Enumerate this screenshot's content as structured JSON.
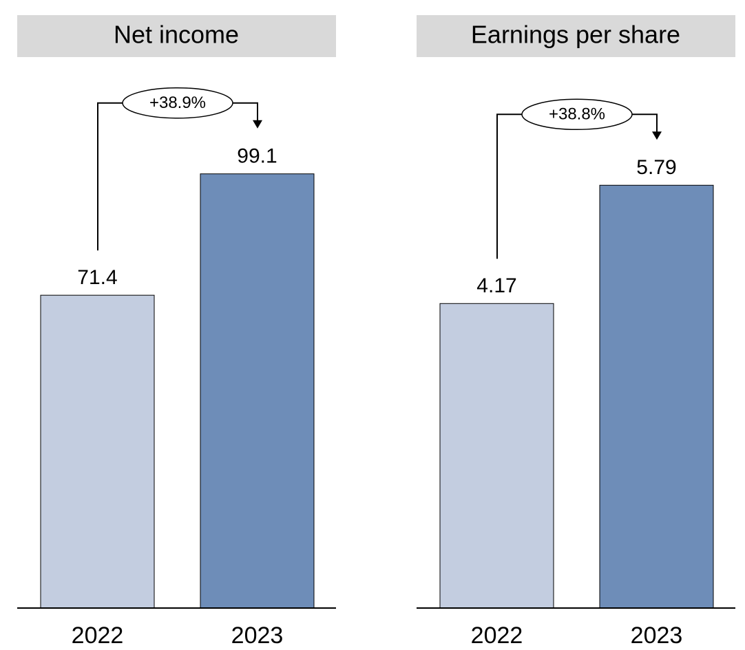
{
  "chart_data": [
    {
      "type": "bar",
      "title": "Net income",
      "categories": [
        "2022",
        "2023"
      ],
      "values": [
        71.4,
        99.1
      ],
      "colors": [
        "#c3cde0",
        "#6e8db8"
      ],
      "annotation": "+38.9%",
      "ylim": [
        0,
        100
      ]
    },
    {
      "type": "bar",
      "title": "Earnings per share",
      "categories": [
        "2022",
        "2023"
      ],
      "values": [
        4.17,
        5.79
      ],
      "colors": [
        "#c3cde0",
        "#6e8db8"
      ],
      "annotation": "+38.8%",
      "ylim": [
        0,
        6
      ]
    }
  ]
}
